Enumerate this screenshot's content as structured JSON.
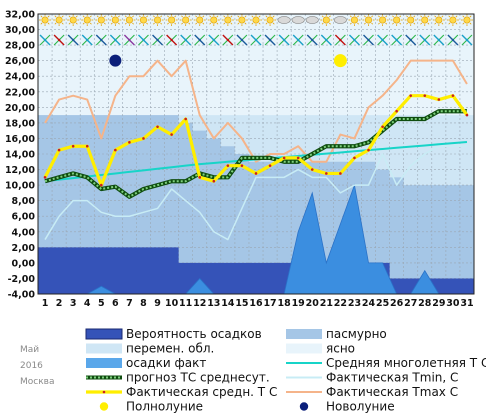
{
  "chart_data": {
    "type": "line",
    "x": [
      1,
      2,
      3,
      4,
      5,
      6,
      7,
      8,
      9,
      10,
      11,
      12,
      13,
      14,
      15,
      16,
      17,
      18,
      19,
      20,
      21,
      22,
      23,
      24,
      25,
      26,
      27,
      28,
      29,
      30,
      31
    ],
    "ylim": [
      -4,
      32
    ],
    "y_ticks": [
      "32,00",
      "30,00",
      "28,00",
      "26,00",
      "24,00",
      "22,00",
      "20,00",
      "18,00",
      "16,00",
      "14,00",
      "12,00",
      "10,00",
      "8,00",
      "6,00",
      "4,00",
      "2,00",
      "0,00",
      "-2,00",
      "-4,00"
    ],
    "x_ticks": [
      "1",
      "2",
      "3",
      "4",
      "5",
      "6",
      "7",
      "8",
      "9",
      "10",
      "11",
      "12",
      "13",
      "14",
      "15",
      "16",
      "17",
      "18",
      "19",
      "20",
      "21",
      "22",
      "23",
      "24",
      "25",
      "26",
      "27",
      "28",
      "29",
      "30",
      "31"
    ],
    "grid": true,
    "series": [
      {
        "name": "Фактическая Tmax C",
        "color": "#f5b48a",
        "values": [
          18,
          21,
          21.5,
          21,
          16,
          21.5,
          24,
          24,
          26,
          24,
          26,
          19,
          16,
          18,
          16,
          13,
          14,
          14,
          15,
          13,
          13,
          16.5,
          16,
          20,
          21.5,
          23.5,
          26,
          26,
          26,
          26,
          23
        ]
      },
      {
        "name": "Фактическая Tmin, C",
        "color": "#c8ecf5",
        "values": [
          3,
          6,
          8,
          8,
          6.5,
          6,
          6,
          6.5,
          7,
          9.5,
          8,
          6.5,
          4,
          3,
          7,
          11,
          11,
          11,
          12,
          11,
          11,
          9,
          10,
          10,
          14,
          10,
          12.5,
          14,
          15,
          15,
          15
        ]
      },
      {
        "name": "Средняя многолетняя Т С",
        "color": "#17d4c8",
        "values": [
          10.5,
          10.7,
          10.9,
          11.1,
          11.3,
          11.5,
          11.7,
          11.9,
          12.1,
          12.3,
          12.5,
          12.7,
          12.85,
          13.0,
          13.15,
          13.3,
          13.45,
          13.6,
          13.75,
          13.9,
          14.05,
          14.2,
          14.35,
          14.5,
          14.65,
          14.8,
          14.95,
          15.1,
          15.25,
          15.4,
          15.55
        ]
      },
      {
        "name": "прогноз ТС среднесут.",
        "color": "#2e8b2e",
        "values": [
          10.5,
          11,
          11.5,
          11,
          9.5,
          9.8,
          8.5,
          9.5,
          10,
          10.5,
          10.5,
          11.5,
          11,
          11,
          13.5,
          13.5,
          13.5,
          13,
          13,
          14,
          15,
          15,
          15,
          15.5,
          17,
          18.5,
          18.5,
          18.5,
          19.5,
          19.5,
          19.5
        ]
      },
      {
        "name": "Фактическая средн. Т С",
        "color": "#ffee00",
        "values": [
          11,
          14.5,
          15,
          15,
          10,
          14.5,
          15.5,
          16,
          17.5,
          16.5,
          18.5,
          11,
          10.5,
          12.5,
          12.5,
          11.5,
          12.5,
          13.5,
          13.5,
          12,
          11.5,
          11.5,
          13.5,
          14.5,
          17.5,
          19.5,
          21.5,
          21.5,
          21,
          21.5,
          19
        ]
      },
      {
        "name": "осадки факт",
        "color": "#3b8ee0",
        "values": [
          -4,
          -4,
          -4,
          -4,
          -3,
          -4,
          -4,
          -4,
          -4,
          -4,
          -4,
          -2,
          -4,
          -4,
          -4,
          -4,
          -4,
          -4,
          4,
          9,
          0,
          5,
          10,
          0,
          0,
          -4,
          -4,
          -1,
          -4,
          -4,
          -4
        ]
      },
      {
        "name": "Вероятность осадков",
        "color": "#3553b8",
        "values": [
          2,
          2,
          2,
          2,
          2,
          2,
          2,
          2,
          2,
          2,
          0,
          0,
          0,
          0,
          0,
          0,
          0,
          0,
          0,
          0,
          0,
          0,
          0,
          0,
          0,
          -2,
          -2,
          -2,
          -2,
          -2,
          -2
        ]
      }
    ],
    "cloud_band": {
      "name": "перемен. обл.",
      "color": "#cfe6f5",
      "values": [
        19,
        19,
        19,
        19,
        19,
        19,
        19,
        19,
        19,
        19,
        19,
        19,
        19,
        19,
        19,
        19,
        19,
        19,
        19,
        19,
        19,
        19,
        19,
        19,
        19,
        19,
        19,
        19,
        19,
        19,
        19
      ]
    },
    "overcast_band": {
      "name": "пасмурно",
      "color": "#a5c6e6",
      "values": [
        19,
        19,
        19,
        19,
        19,
        19,
        19,
        19,
        19,
        19,
        18,
        17,
        16,
        15,
        14,
        13,
        13,
        13,
        13,
        13,
        13,
        13,
        13,
        13,
        12,
        11,
        10,
        10,
        10,
        10,
        10
      ]
    },
    "new_moon_day": 6,
    "full_moon_day": 22,
    "legend": {
      "left": [
        {
          "label": "Вероятность осадков",
          "kind": "box",
          "color": "#3553b8"
        },
        {
          "label": "перемен. обл.",
          "kind": "box",
          "color": "#cfe6f5"
        },
        {
          "label": "осадки факт",
          "kind": "box",
          "color": "#5aa7ea"
        },
        {
          "label": "прогноз ТС среднесут.",
          "kind": "dotted",
          "color": "#2e8b2e"
        },
        {
          "label": "Фактическая средн. Т С",
          "kind": "bold-line",
          "color": "#ffee00"
        },
        {
          "label": "Полнолуние",
          "kind": "dot",
          "color": "#ffee00"
        }
      ],
      "right": [
        {
          "label": "пасмурно",
          "kind": "box",
          "color": "#a5c6e6"
        },
        {
          "label": "ясно",
          "kind": "box",
          "color": "#e8f4fb"
        },
        {
          "label": "Средняя многолетняя Т С",
          "kind": "line",
          "color": "#17d4c8"
        },
        {
          "label": "Фактическая Tmin, C",
          "kind": "line",
          "color": "#c8ecf5"
        },
        {
          "label": "Фактическая Tmax C",
          "kind": "line",
          "color": "#f5b48a"
        },
        {
          "label": "Новолуние",
          "kind": "dot",
          "color": "#0b1f7a"
        }
      ]
    },
    "corner_labels": [
      "Май",
      "2016",
      "Москва"
    ]
  },
  "weather_icons": {
    "top_row": [
      "sun",
      "sun",
      "sun",
      "sun",
      "sun",
      "sun",
      "sun",
      "sun",
      "sun",
      "sun",
      "sun",
      "sun",
      "sun",
      "sun",
      "sun",
      "sun",
      "sun",
      "cloud",
      "cloud",
      "cloud",
      "sun",
      "cloud",
      "sun",
      "sun",
      "sun",
      "sun",
      "sun",
      "sun",
      "sun",
      "sun",
      "sun"
    ],
    "wind_row_colors": [
      "#1aa0c8",
      "#c01010",
      "#1a5a9a",
      "#1aa0c8",
      "#1a5a9a",
      "#1aa0c8",
      "#8a3aa0",
      "#1aa0c8",
      "#1a5a9a",
      "#c01010",
      "#1aa0c8",
      "#1a5a9a",
      "#1aa0c8",
      "#c01010",
      "#1a5a9a",
      "#1aa0c8",
      "#1a5a9a",
      "#1aa0c8",
      "#1aa0c8",
      "#1a5a9a",
      "#1aa0c8",
      "#c01010",
      "#1aa0c8",
      "#1a5a9a",
      "#1aa0c8",
      "#1aa0c8",
      "#1a5a9a",
      "#1aa0c8",
      "#1aa0c8",
      "#1a5a9a",
      "#1aa0c8"
    ]
  }
}
